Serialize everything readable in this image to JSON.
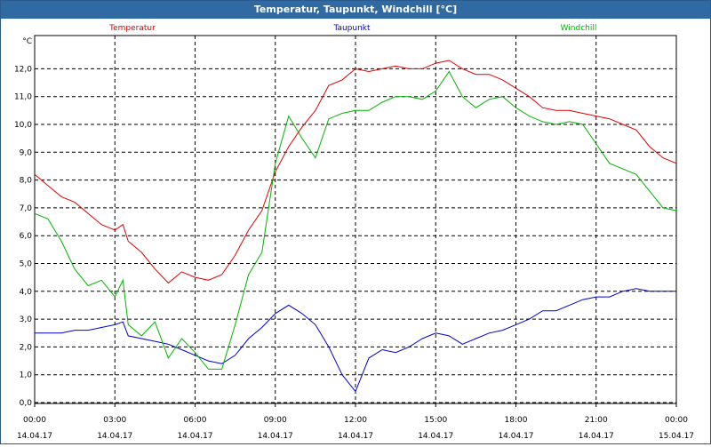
{
  "window": {
    "title": "Temperatur, Taupunkt, Windchill [°C]"
  },
  "chart_data": {
    "type": "line",
    "title": "Temperatur, Taupunkt, Windchill [°C]",
    "ylabel": "°C",
    "ylim": [
      0,
      13
    ],
    "yticks": [
      "0,0",
      "1,0",
      "2,0",
      "3,0",
      "4,0",
      "5,0",
      "6,0",
      "7,0",
      "8,0",
      "9,0",
      "10,0",
      "11,0",
      "12,0"
    ],
    "xlim": [
      0,
      24
    ],
    "xticks": [
      {
        "time": "00:00",
        "date": "14.04.17"
      },
      {
        "time": "03:00",
        "date": "14.04.17"
      },
      {
        "time": "06:00",
        "date": "14.04.17"
      },
      {
        "time": "09:00",
        "date": "14.04.17"
      },
      {
        "time": "12:00",
        "date": "14.04.17"
      },
      {
        "time": "15:00",
        "date": "14.04.17"
      },
      {
        "time": "18:00",
        "date": "14.04.17"
      },
      {
        "time": "21:00",
        "date": "14.04.17"
      },
      {
        "time": "00:00",
        "date": "15.04.17"
      }
    ],
    "grid": true,
    "legend_position": "top",
    "series": [
      {
        "name": "Temperatur",
        "color": "#e00000",
        "x": [
          0,
          0.5,
          1,
          1.5,
          2,
          2.5,
          3,
          3.3,
          3.5,
          4,
          4.5,
          5,
          5.5,
          6,
          6.5,
          7,
          7.5,
          8,
          8.5,
          9,
          9.5,
          10,
          10.5,
          11,
          11.5,
          12,
          12.5,
          13,
          13.5,
          14,
          14.5,
          15,
          15.5,
          16,
          16.5,
          17,
          17.5,
          18,
          18.5,
          19,
          19.5,
          20,
          20.5,
          21,
          21.5,
          22,
          22.5,
          23,
          23.5,
          24
        ],
        "values": [
          8.2,
          7.8,
          7.4,
          7.2,
          6.8,
          6.4,
          6.2,
          6.4,
          5.8,
          5.4,
          4.8,
          4.3,
          4.7,
          4.5,
          4.4,
          4.6,
          5.3,
          6.2,
          6.9,
          8.3,
          9.2,
          9.9,
          10.5,
          11.4,
          11.6,
          12.0,
          11.9,
          12.0,
          12.1,
          12.0,
          12.0,
          12.2,
          12.3,
          12.0,
          11.8,
          11.8,
          11.6,
          11.3,
          11.0,
          10.6,
          10.5,
          10.5,
          10.4,
          10.3,
          10.2,
          10.0,
          9.8,
          9.2,
          8.8,
          8.6
        ]
      },
      {
        "name": "Taupunkt",
        "color": "#0000d0",
        "x": [
          0,
          0.5,
          1,
          1.5,
          2,
          2.5,
          3,
          3.3,
          3.5,
          4,
          4.5,
          5,
          5.5,
          6,
          6.5,
          7,
          7.5,
          8,
          8.5,
          9,
          9.5,
          10,
          10.5,
          11,
          11.5,
          12,
          12.5,
          13,
          13.5,
          14,
          14.5,
          15,
          15.5,
          16,
          16.5,
          17,
          17.5,
          18,
          18.5,
          19,
          19.5,
          20,
          20.5,
          21,
          21.5,
          22,
          22.5,
          23,
          23.5,
          24
        ],
        "values": [
          2.5,
          2.5,
          2.5,
          2.6,
          2.6,
          2.7,
          2.8,
          2.9,
          2.4,
          2.3,
          2.2,
          2.1,
          1.9,
          1.7,
          1.5,
          1.4,
          1.7,
          2.3,
          2.7,
          3.2,
          3.5,
          3.2,
          2.8,
          2.0,
          1.0,
          0.4,
          1.6,
          1.9,
          1.8,
          2.0,
          2.3,
          2.5,
          2.4,
          2.1,
          2.3,
          2.5,
          2.6,
          2.8,
          3.0,
          3.3,
          3.3,
          3.5,
          3.7,
          3.8,
          3.8,
          4.0,
          4.1,
          4.0,
          4.0,
          4.0
        ]
      },
      {
        "name": "Windchill",
        "color": "#00b400",
        "x": [
          0,
          0.5,
          1,
          1.5,
          2,
          2.5,
          3,
          3.3,
          3.5,
          4,
          4.5,
          5,
          5.5,
          6,
          6.5,
          7,
          7.5,
          8,
          8.5,
          9,
          9.5,
          10,
          10.5,
          11,
          11.5,
          12,
          12.5,
          13,
          13.5,
          14,
          14.5,
          15,
          15.5,
          16,
          16.5,
          17,
          17.5,
          18,
          18.5,
          19,
          19.5,
          20,
          20.5,
          21,
          21.5,
          22,
          22.5,
          23,
          23.5,
          24
        ],
        "values": [
          6.8,
          6.6,
          5.8,
          4.8,
          4.2,
          4.4,
          3.8,
          4.4,
          2.8,
          2.4,
          2.9,
          1.6,
          2.3,
          1.8,
          1.2,
          1.2,
          2.8,
          4.6,
          5.4,
          8.6,
          10.3,
          9.5,
          8.8,
          10.2,
          10.4,
          10.5,
          10.5,
          10.8,
          11.0,
          11.0,
          10.9,
          11.2,
          11.9,
          11.0,
          10.6,
          10.9,
          11.0,
          10.6,
          10.3,
          10.1,
          10.0,
          10.1,
          10.0,
          9.3,
          8.6,
          8.4,
          8.2,
          7.6,
          7.0,
          6.9
        ]
      }
    ]
  }
}
